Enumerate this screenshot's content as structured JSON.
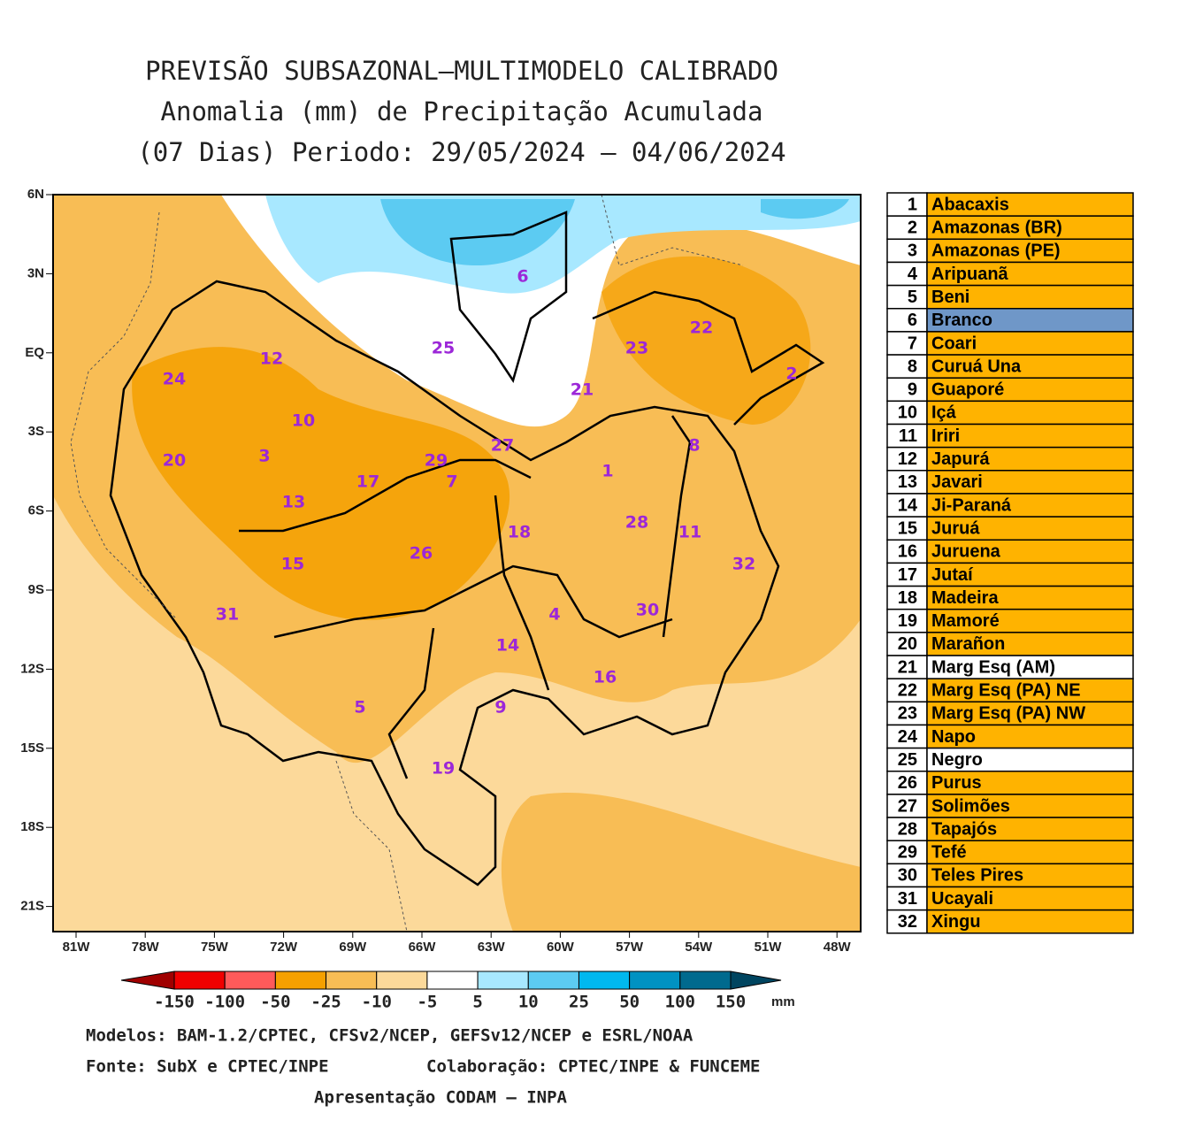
{
  "title": [
    "PREVISÃO SUBSAZONAL—MULTIMODELO CALIBRADO",
    "Anomalia (mm) de Precipitação Acumulada",
    "(07 Dias) Periodo: 29/05/2024 – 04/06/2024"
  ],
  "map": {
    "lat_labels": [
      "6N",
      "3N",
      "EQ",
      "3S",
      "6S",
      "9S",
      "12S",
      "15S",
      "18S",
      "21S"
    ],
    "lon_labels": [
      "81W",
      "78W",
      "75W",
      "72W",
      "69W",
      "66W",
      "63W",
      "60W",
      "57W",
      "54W",
      "51W",
      "48W"
    ]
  },
  "colorbar": {
    "bounds": [
      -150,
      -100,
      -50,
      -25,
      -10,
      -5,
      5,
      10,
      25,
      50,
      100,
      150
    ],
    "colors": [
      "#a00000",
      "#f00000",
      "#ff5a5a",
      "#f5a000",
      "#f8bd55",
      "#fcd99a",
      "#ffffff",
      "#a8e8ff",
      "#5ccbf2",
      "#00b8ef",
      "#0092c2",
      "#006a8e",
      "#004560"
    ],
    "unit": "mm"
  },
  "footer": [
    "Modelos: BAM-1.2/CPTEC, CFSv2/NCEP, GEFSv12/NCEP e ESRL/NOAA",
    "Fonte: SubX e CPTEC/INPE",
    "Colaboração: CPTEC/INPE & FUNCEME",
    "Apresentação CODAM – INPA"
  ],
  "legend": {
    "rows": [
      {
        "number": "1",
        "name": "Abacaxis",
        "color": "#ffb300"
      },
      {
        "number": "2",
        "name": "Amazonas (BR)",
        "color": "#ffb300"
      },
      {
        "number": "3",
        "name": "Amazonas (PE)",
        "color": "#ffb300"
      },
      {
        "number": "4",
        "name": "Aripuanã",
        "color": "#ffb300"
      },
      {
        "number": "5",
        "name": "Beni",
        "color": "#ffb300"
      },
      {
        "number": "6",
        "name": "Branco",
        "color": "#6f97c8"
      },
      {
        "number": "7",
        "name": "Coari",
        "color": "#ffb300"
      },
      {
        "number": "8",
        "name": "Curuá Una",
        "color": "#ffb300"
      },
      {
        "number": "9",
        "name": "Guaporé",
        "color": "#ffb300"
      },
      {
        "number": "10",
        "name": "Içá",
        "color": "#ffb300"
      },
      {
        "number": "11",
        "name": "Iriri",
        "color": "#ffb300"
      },
      {
        "number": "12",
        "name": "Japurá",
        "color": "#ffb300"
      },
      {
        "number": "13",
        "name": "Javari",
        "color": "#ffb300"
      },
      {
        "number": "14",
        "name": "Ji-Paraná",
        "color": "#ffb300"
      },
      {
        "number": "15",
        "name": "Juruá",
        "color": "#ffb300"
      },
      {
        "number": "16",
        "name": "Juruena",
        "color": "#ffb300"
      },
      {
        "number": "17",
        "name": "Jutaí",
        "color": "#ffb300"
      },
      {
        "number": "18",
        "name": "Madeira",
        "color": "#ffb300"
      },
      {
        "number": "19",
        "name": "Mamoré",
        "color": "#ffb300"
      },
      {
        "number": "20",
        "name": "Marañon",
        "color": "#ffb300"
      },
      {
        "number": "21",
        "name": "Marg Esq (AM)",
        "color": "#ffffff"
      },
      {
        "number": "22",
        "name": "Marg Esq (PA) NE",
        "color": "#ffb300"
      },
      {
        "number": "23",
        "name": "Marg Esq (PA) NW",
        "color": "#ffb300"
      },
      {
        "number": "24",
        "name": "Napo",
        "color": "#ffb300"
      },
      {
        "number": "25",
        "name": "Negro",
        "color": "#ffffff"
      },
      {
        "number": "26",
        "name": "Purus",
        "color": "#ffb300"
      },
      {
        "number": "27",
        "name": "Solimões",
        "color": "#ffb300"
      },
      {
        "number": "28",
        "name": "Tapajós",
        "color": "#ffb300"
      },
      {
        "number": "29",
        "name": "Tefé",
        "color": "#ffb300"
      },
      {
        "number": "30",
        "name": "Teles Pires",
        "color": "#ffb300"
      },
      {
        "number": "31",
        "name": "Ucayali",
        "color": "#ffb300"
      },
      {
        "number": "32",
        "name": "Xingu",
        "color": "#ffb300"
      }
    ]
  }
}
